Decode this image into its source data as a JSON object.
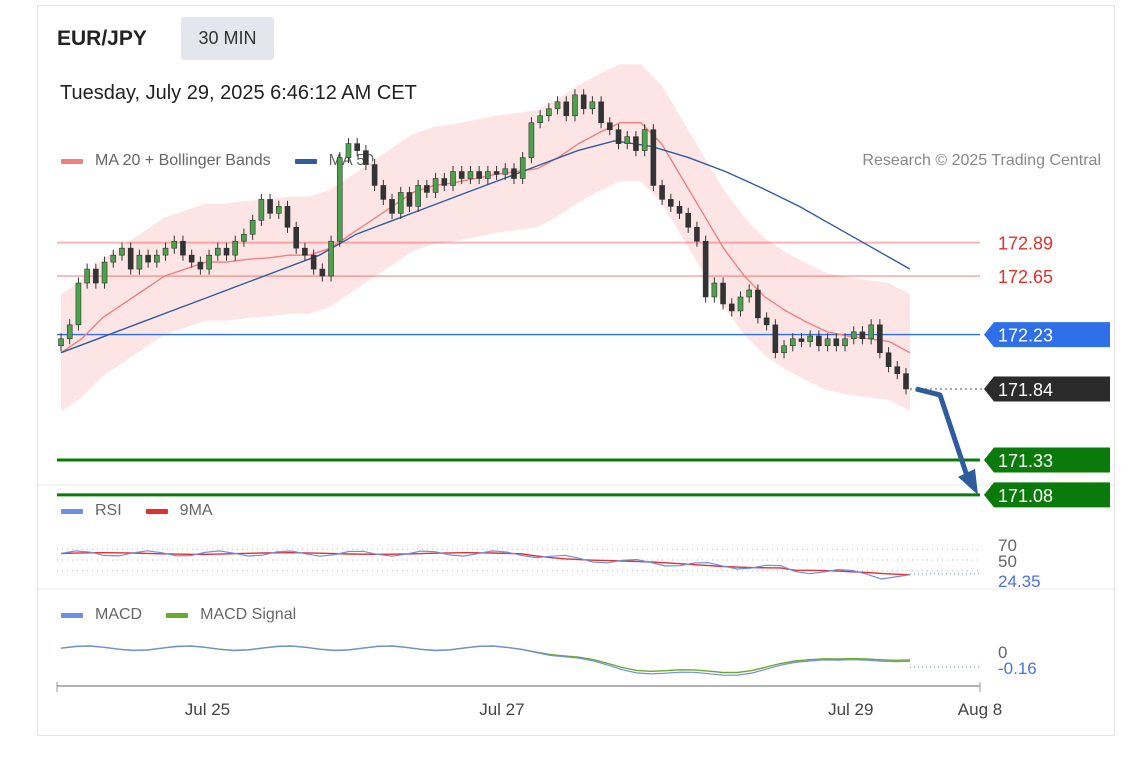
{
  "header": {
    "pair": "EUR/JPY",
    "timeframe": "30 MIN",
    "datetime": "Tuesday, July 29, 2025 6:46:12 AM CET",
    "credit": "Research © 2025 Trading Central"
  },
  "colors": {
    "ma20": "#f08080",
    "ma50": "#2f5c9c",
    "band": "#fde0e0",
    "resistance": "#e0302a",
    "pivot": "#2f6fe8",
    "support": "#0a7a0a",
    "last": "#2b2b2b",
    "rsi": "#6f8fe6",
    "rsi9": "#e03030",
    "macd": "#6f8fe6",
    "macdSignal": "#6aaa2a",
    "arrow": "#2f5c9c"
  },
  "legend": {
    "price": [
      {
        "label": "MA 20 + Bollinger Bands",
        "color": "#f08080"
      },
      {
        "label": "MA 50",
        "color": "#2f5c9c"
      }
    ],
    "rsi": [
      {
        "label": "RSI",
        "color": "#6f8fe6"
      },
      {
        "label": "9MA",
        "color": "#e03030"
      }
    ],
    "macd": [
      {
        "label": "MACD",
        "color": "#6f8fe6"
      },
      {
        "label": "MACD Signal",
        "color": "#6aaa2a"
      }
    ]
  },
  "chart_data": {
    "type": "candlestick",
    "instrument": "EUR/JPY",
    "interval": "30 MIN",
    "ylim": [
      170.9,
      174.2
    ],
    "xlim": [
      0,
      1.0
    ],
    "x_ticks": [
      {
        "label": "Jul 25",
        "x": 0.163
      },
      {
        "label": "Jul 27",
        "x": 0.482
      },
      {
        "label": "Jul 29",
        "x": 0.86
      },
      {
        "label": "Aug 8",
        "x": 1.0
      }
    ],
    "levels": [
      {
        "label": "172.89",
        "value": 172.89,
        "kind": "resistance"
      },
      {
        "label": "172.65",
        "value": 172.65,
        "kind": "resistance"
      },
      {
        "label": "172.23",
        "value": 172.23,
        "kind": "pivot"
      },
      {
        "label": "171.84",
        "value": 171.84,
        "kind": "last"
      },
      {
        "label": "171.33",
        "value": 171.33,
        "kind": "support"
      },
      {
        "label": "171.08",
        "value": 171.08,
        "kind": "support"
      }
    ],
    "closes": [
      172.2,
      172.3,
      172.6,
      172.7,
      172.6,
      172.75,
      172.8,
      172.85,
      172.7,
      172.8,
      172.75,
      172.8,
      172.85,
      172.9,
      172.8,
      172.75,
      172.7,
      172.8,
      172.85,
      172.8,
      172.9,
      172.95,
      173.05,
      173.2,
      173.1,
      173.15,
      173.0,
      172.85,
      172.8,
      172.7,
      172.65,
      172.9,
      173.5,
      173.6,
      173.55,
      173.45,
      173.3,
      173.2,
      173.1,
      173.25,
      173.15,
      173.3,
      173.25,
      173.35,
      173.3,
      173.4,
      173.35,
      173.4,
      173.35,
      173.4,
      173.38,
      173.42,
      173.35,
      173.5,
      173.75,
      173.8,
      173.85,
      173.9,
      173.8,
      173.95,
      173.85,
      173.9,
      173.75,
      173.7,
      173.6,
      173.65,
      173.55,
      173.7,
      173.3,
      173.2,
      173.15,
      173.1,
      173.0,
      172.9,
      172.5,
      172.6,
      172.45,
      172.4,
      172.5,
      172.55,
      172.35,
      172.3,
      172.1,
      172.15,
      172.2,
      172.18,
      172.22,
      172.15,
      172.2,
      172.15,
      172.2,
      172.25,
      172.2,
      172.3,
      172.1,
      172.0,
      171.95,
      171.84
    ],
    "ma20": [
      172.1,
      172.2,
      172.35,
      172.45,
      172.55,
      172.65,
      172.7,
      172.75,
      172.75,
      172.77,
      172.78,
      172.8,
      172.8,
      172.85,
      172.95,
      173.05,
      173.15,
      173.25,
      173.3,
      173.32,
      173.35,
      173.38,
      173.4,
      173.42,
      173.5,
      173.6,
      173.68,
      173.75,
      173.75,
      173.6,
      173.35,
      173.1,
      172.85,
      172.65,
      172.5,
      172.4,
      172.32,
      172.25,
      172.22,
      172.2,
      172.18,
      172.1
    ],
    "ma50": [
      172.1,
      172.2,
      172.3,
      172.4,
      172.5,
      172.6,
      172.7,
      172.8,
      172.95,
      173.05,
      173.15,
      173.25,
      173.35,
      173.45,
      173.55,
      173.62,
      173.58,
      173.5,
      173.4,
      173.28,
      173.15,
      173.0,
      172.85,
      172.7
    ],
    "rsi": {
      "ylim": [
        0,
        100
      ],
      "levels": [
        70,
        50
      ],
      "last": 24.35,
      "labels": [
        "70",
        "50",
        "24.35"
      ]
    },
    "macd": {
      "zero_label": "0",
      "last": -0.16,
      "last_label": "-0.16"
    },
    "forecast": "down arrow from 171.84 toward 171.08"
  }
}
